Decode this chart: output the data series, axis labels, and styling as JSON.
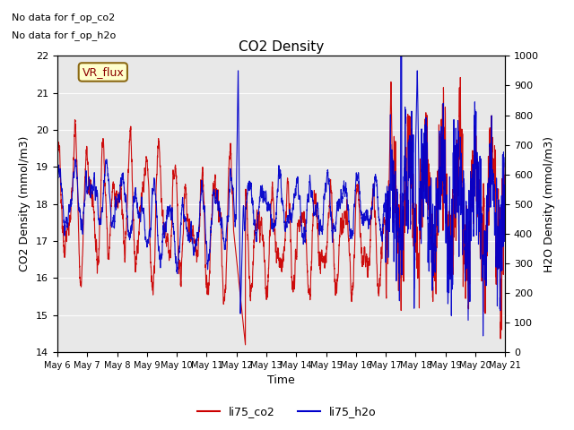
{
  "title": "CO2 Density",
  "xlabel": "Time",
  "ylabel_left": "CO2 Density (mmol/m3)",
  "ylabel_right": "H2O Density (mmol/m3)",
  "ylim_left": [
    14.0,
    22.0
  ],
  "ylim_right": [
    0,
    1000
  ],
  "annotation1": "No data for f_op_co2",
  "annotation2": "No data for f_op_h2o",
  "legend_label1": "li75_co2",
  "legend_label2": "li75_h2o",
  "legend_box_label": "VR_flux",
  "color_co2": "#cc0000",
  "color_h2o": "#0000cc",
  "xtick_labels": [
    "May 6",
    "May 7",
    "May 8",
    "May 9",
    "May 10",
    "May 11",
    "May 12",
    "May 13",
    "May 14",
    "May 15",
    "May 16",
    "May 17",
    "May 18",
    "May 19",
    "May 20",
    "May 21"
  ],
  "background_color": "#ffffff",
  "plot_bg_color": "#e8e8e8"
}
